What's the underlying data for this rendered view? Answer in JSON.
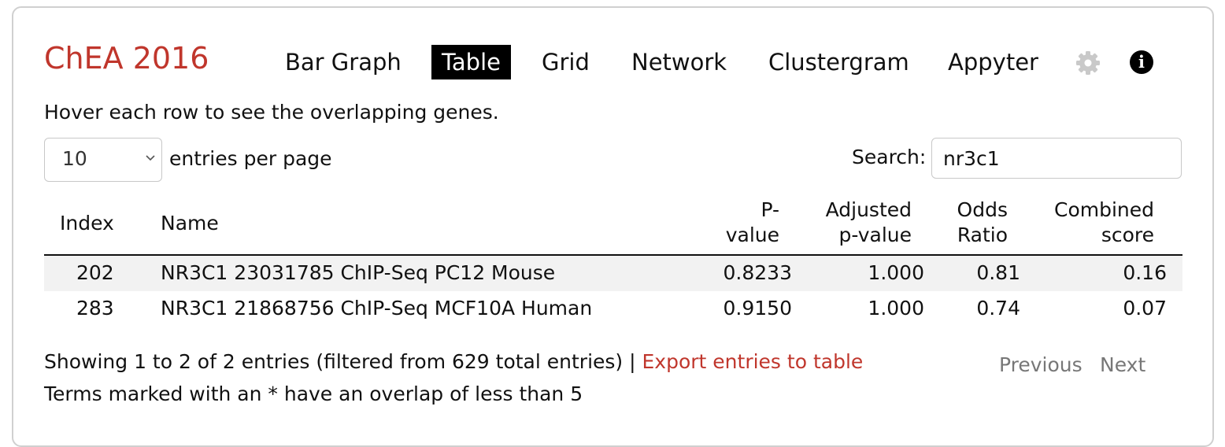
{
  "header": {
    "title": "ChEA 2016",
    "tabs": [
      {
        "label": "Bar Graph",
        "active": false
      },
      {
        "label": "Table",
        "active": true
      },
      {
        "label": "Grid",
        "active": false
      },
      {
        "label": "Network",
        "active": false
      },
      {
        "label": "Clustergram",
        "active": false
      },
      {
        "label": "Appyter",
        "active": false
      }
    ],
    "settings_icon": "gear-icon",
    "info_icon": "info-icon",
    "info_glyph": "i"
  },
  "hint": "Hover each row to see the overlapping genes.",
  "controls": {
    "entries_value": "10",
    "entries_label": "entries per page",
    "search_label": "Search:",
    "search_value": "nr3c1"
  },
  "table": {
    "columns": {
      "index": "Index",
      "name": "Name",
      "pvalue_line1": "P-",
      "pvalue_line2": "value",
      "adj_line1": "Adjusted",
      "adj_line2": "p-value",
      "odds_line1": "Odds",
      "odds_line2": "Ratio",
      "combined_line1": "Combined",
      "combined_line2": "score"
    },
    "rows": [
      {
        "index": "202",
        "name": "NR3C1 23031785 ChIP-Seq PC12 Mouse",
        "pvalue": "0.8233",
        "adjusted": "1.000",
        "odds": "0.81",
        "combined": "0.16"
      },
      {
        "index": "283",
        "name": "NR3C1 21868756 ChIP-Seq MCF10A Human",
        "pvalue": "0.9150",
        "adjusted": "1.000",
        "odds": "0.74",
        "combined": "0.07"
      }
    ]
  },
  "footer": {
    "showing": "Showing 1 to 2 of 2 entries (filtered from 629 total entries) |",
    "export_link": "Export entries to table",
    "note": "Terms marked with an * have an overlap of less than 5",
    "previous": "Previous",
    "next": "Next"
  },
  "colors": {
    "accent": "#c0362c",
    "active_tab_bg": "#000000",
    "stripe": "#f2f2f2",
    "muted": "#777777"
  }
}
